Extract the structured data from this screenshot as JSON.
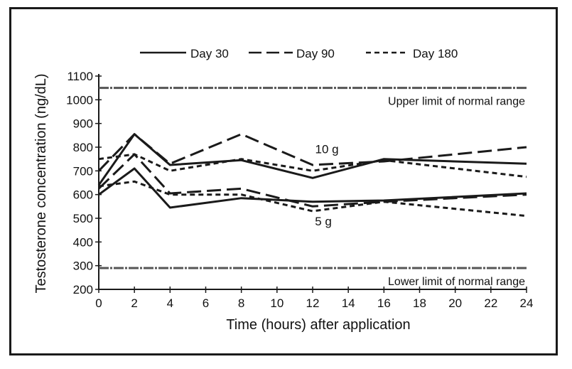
{
  "chart_data": {
    "type": "line",
    "title": "",
    "xlabel": "Time (hours) after application",
    "ylabel": "Testosterone concentration (ng/dL)",
    "xlim": [
      0,
      24
    ],
    "ylim": [
      200,
      1100
    ],
    "x_ticks": [
      0,
      2,
      4,
      6,
      8,
      10,
      12,
      14,
      16,
      18,
      20,
      22,
      24
    ],
    "y_ticks": [
      200,
      300,
      400,
      500,
      600,
      700,
      800,
      900,
      1000,
      1100
    ],
    "legend": [
      "Day 30",
      "Day 90",
      "Day 180"
    ],
    "reference_lines": [
      {
        "y": 1050,
        "label": "Upper limit of normal range"
      },
      {
        "y": 290,
        "label": "Lower limit of normal range"
      }
    ],
    "annotations": [
      {
        "text": "10 g",
        "x": 12.8,
        "y": 775
      },
      {
        "text": "5 g",
        "x": 12.6,
        "y": 470
      }
    ],
    "series": [
      {
        "name": "Day 30",
        "dose": "10 g",
        "style": "solid",
        "x": [
          0,
          2,
          4,
          8,
          12,
          16,
          24
        ],
        "y": [
          640,
          855,
          725,
          745,
          670,
          750,
          730
        ]
      },
      {
        "name": "Day 90",
        "dose": "10 g",
        "style": "dash",
        "x": [
          0,
          2,
          4,
          8,
          12,
          16,
          24
        ],
        "y": [
          700,
          855,
          730,
          855,
          725,
          740,
          800
        ]
      },
      {
        "name": "Day 180",
        "dose": "10 g",
        "style": "dot",
        "x": [
          0,
          2,
          4,
          8,
          12,
          16,
          24
        ],
        "y": [
          750,
          770,
          700,
          750,
          700,
          745,
          675
        ]
      },
      {
        "name": "Day 30",
        "dose": "5 g",
        "style": "solid",
        "x": [
          0,
          2,
          4,
          8,
          12,
          16,
          24
        ],
        "y": [
          600,
          710,
          545,
          585,
          570,
          575,
          605
        ]
      },
      {
        "name": "Day 90",
        "dose": "5 g",
        "style": "dash",
        "x": [
          0,
          2,
          4,
          8,
          12,
          16,
          24
        ],
        "y": [
          625,
          770,
          605,
          625,
          550,
          570,
          600
        ]
      },
      {
        "name": "Day 180",
        "dose": "5 g",
        "style": "dot",
        "x": [
          0,
          2,
          4,
          8,
          12,
          16,
          24
        ],
        "y": [
          635,
          655,
          600,
          600,
          530,
          570,
          510
        ]
      }
    ]
  },
  "styles": {
    "line_color": "#1a1a1a",
    "ref_line_color": "#555555"
  }
}
